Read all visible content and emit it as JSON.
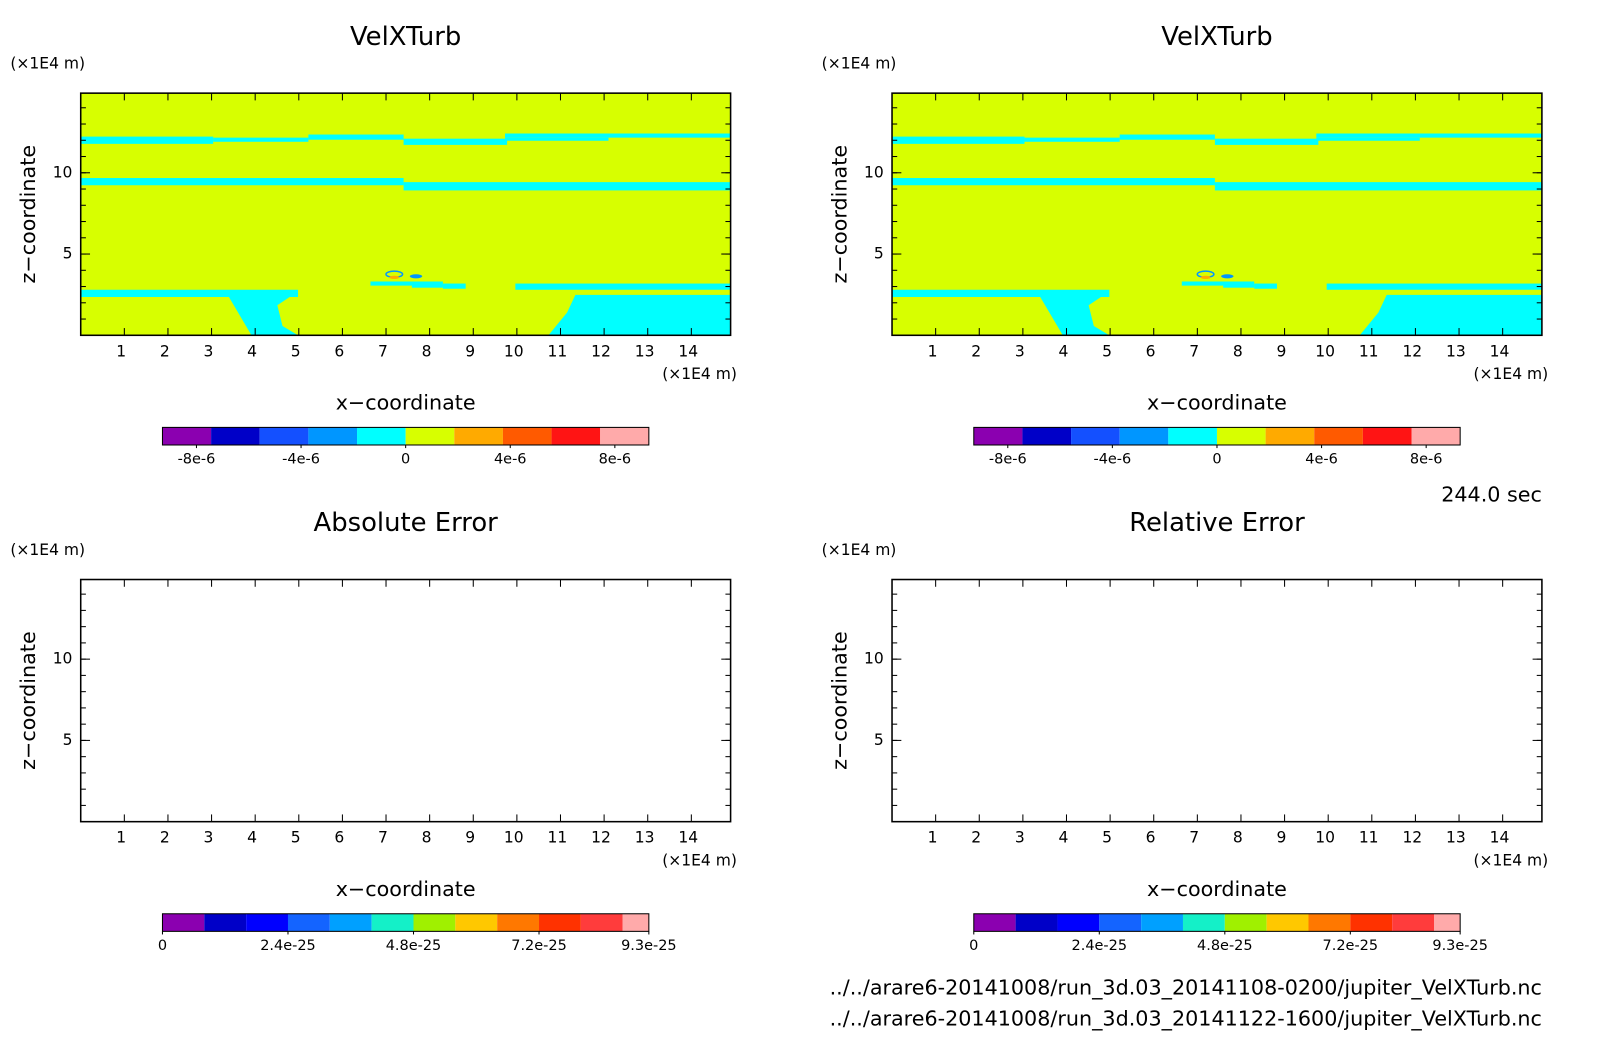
{
  "chart_data": [
    {
      "type": "contour",
      "title": "VelXTurb",
      "xlabel": "x−coordinate",
      "ylabel": "z−coordinate",
      "x_unit": "(×1E4 m)",
      "y_unit": "(×1E4 m)",
      "filled": true,
      "xlim": [
        0,
        14.9
      ],
      "ylim": [
        0,
        14.9
      ],
      "xticks": [
        1,
        2,
        3,
        4,
        5,
        6,
        7,
        8,
        9,
        10,
        11,
        12,
        13,
        14
      ],
      "yticks": [
        5,
        10
      ],
      "yminorticks": [
        1,
        2,
        3,
        4,
        5,
        6,
        7,
        8,
        9,
        10,
        11,
        12,
        13,
        14
      ],
      "colorbar": {
        "levels": [
          -9.3e-06,
          -7.44e-06,
          -5.58e-06,
          -3.72e-06,
          -1.86e-06,
          0,
          1.86e-06,
          3.72e-06,
          5.58e-06,
          7.44e-06,
          9.3e-06
        ],
        "colors": [
          "#8b00b0",
          "#0000c8",
          "#1450ff",
          "#0096ff",
          "#00ffff",
          "#d7ff00",
          "#ffaa00",
          "#ff5a00",
          "#ff1414",
          "#ffaaaa"
        ],
        "ticks": [
          {
            "value": -8e-06,
            "label": "-8e-6"
          },
          {
            "value": -4e-06,
            "label": "-4e-6"
          },
          0,
          {
            "value": 4e-06,
            "label": "4e-6"
          },
          {
            "value": 8e-06,
            "label": "8e-6"
          }
        ]
      }
    },
    {
      "type": "contour",
      "title": "VelXTurb",
      "xlabel": "x−coordinate",
      "ylabel": "z−coordinate",
      "x_unit": "(×1E4 m)",
      "y_unit": "(×1E4 m)",
      "filled": true,
      "xlim": [
        0,
        14.9
      ],
      "ylim": [
        0,
        14.9
      ],
      "xticks": [
        1,
        2,
        3,
        4,
        5,
        6,
        7,
        8,
        9,
        10,
        11,
        12,
        13,
        14
      ],
      "yticks": [
        5,
        10
      ],
      "yminorticks": [
        1,
        2,
        3,
        4,
        5,
        6,
        7,
        8,
        9,
        10,
        11,
        12,
        13,
        14
      ],
      "colorbar": {
        "levels": [
          -9.3e-06,
          -7.44e-06,
          -5.58e-06,
          -3.72e-06,
          -1.86e-06,
          0,
          1.86e-06,
          3.72e-06,
          5.58e-06,
          7.44e-06,
          9.3e-06
        ],
        "colors": [
          "#8b00b0",
          "#0000c8",
          "#1450ff",
          "#0096ff",
          "#00ffff",
          "#d7ff00",
          "#ffaa00",
          "#ff5a00",
          "#ff1414",
          "#ffaaaa"
        ],
        "ticks": [
          {
            "value": -8e-06,
            "label": "-8e-6"
          },
          {
            "value": -4e-06,
            "label": "-4e-6"
          },
          0,
          {
            "value": 4e-06,
            "label": "4e-6"
          },
          {
            "value": 8e-06,
            "label": "8e-6"
          }
        ]
      }
    },
    {
      "type": "contour",
      "title": "Absolute Error",
      "xlabel": "x−coordinate",
      "ylabel": "z−coordinate",
      "x_unit": "(×1E4 m)",
      "y_unit": "(×1E4 m)",
      "filled": false,
      "xlim": [
        0,
        14.9
      ],
      "ylim": [
        0,
        14.9
      ],
      "xticks": [
        1,
        2,
        3,
        4,
        5,
        6,
        7,
        8,
        9,
        10,
        11,
        12,
        13,
        14
      ],
      "yticks": [
        5,
        10
      ],
      "yminorticks": [
        1,
        2,
        3,
        4,
        5,
        6,
        7,
        8,
        9,
        10,
        11,
        12,
        13,
        14
      ],
      "colorbar": {
        "levels": [
          0,
          8e-26,
          1.6e-25,
          2.4e-25,
          3.2e-25,
          4e-25,
          4.8e-25,
          5.6e-25,
          6.4e-25,
          7.2e-25,
          8e-25,
          8.8e-25,
          9.3e-25
        ],
        "colors": [
          "#8b00b0",
          "#0000c8",
          "#0000ff",
          "#1464ff",
          "#00a0ff",
          "#14f0c8",
          "#a0f000",
          "#ffc800",
          "#ff7800",
          "#ff3200",
          "#ff3c3c",
          "#ffaaaa"
        ],
        "ticks": [
          0,
          {
            "value": 2.4e-25,
            "label": "2.4e-25"
          },
          {
            "value": 4.8e-25,
            "label": "4.8e-25"
          },
          {
            "value": 7.2e-25,
            "label": "7.2e-25"
          },
          {
            "value": 9.3e-25,
            "label": "9.3e-25"
          }
        ]
      }
    },
    {
      "type": "contour",
      "title": "Relative Error",
      "xlabel": "x−coordinate",
      "ylabel": "z−coordinate",
      "x_unit": "(×1E4 m)",
      "y_unit": "(×1E4 m)",
      "filled": false,
      "xlim": [
        0,
        14.9
      ],
      "ylim": [
        0,
        14.9
      ],
      "xticks": [
        1,
        2,
        3,
        4,
        5,
        6,
        7,
        8,
        9,
        10,
        11,
        12,
        13,
        14
      ],
      "yticks": [
        5,
        10
      ],
      "yminorticks": [
        1,
        2,
        3,
        4,
        5,
        6,
        7,
        8,
        9,
        10,
        11,
        12,
        13,
        14
      ],
      "colorbar": {
        "levels": [
          0,
          8e-26,
          1.6e-25,
          2.4e-25,
          3.2e-25,
          4e-25,
          4.8e-25,
          5.6e-25,
          6.4e-25,
          7.2e-25,
          8e-25,
          8.8e-25,
          9.3e-25
        ],
        "colors": [
          "#8b00b0",
          "#0000c8",
          "#0000ff",
          "#1464ff",
          "#00a0ff",
          "#14f0c8",
          "#a0f000",
          "#ffc800",
          "#ff7800",
          "#ff3200",
          "#ff3c3c",
          "#ffaaaa"
        ],
        "ticks": [
          0,
          {
            "value": 2.4e-25,
            "label": "2.4e-25"
          },
          {
            "value": 4.8e-25,
            "label": "4.8e-25"
          },
          {
            "value": 7.2e-25,
            "label": "7.2e-25"
          },
          {
            "value": 9.3e-25,
            "label": "9.3e-25"
          }
        ]
      }
    }
  ],
  "footer": {
    "time": "244.0 sec",
    "files": [
      "../../arare6-20141008/run_3d.03_20141108-0200/jupiter_VelXTurb.nc",
      "../../arare6-20141008/run_3d.03_20141122-1600/jupiter_VelXTurb.nc"
    ]
  }
}
